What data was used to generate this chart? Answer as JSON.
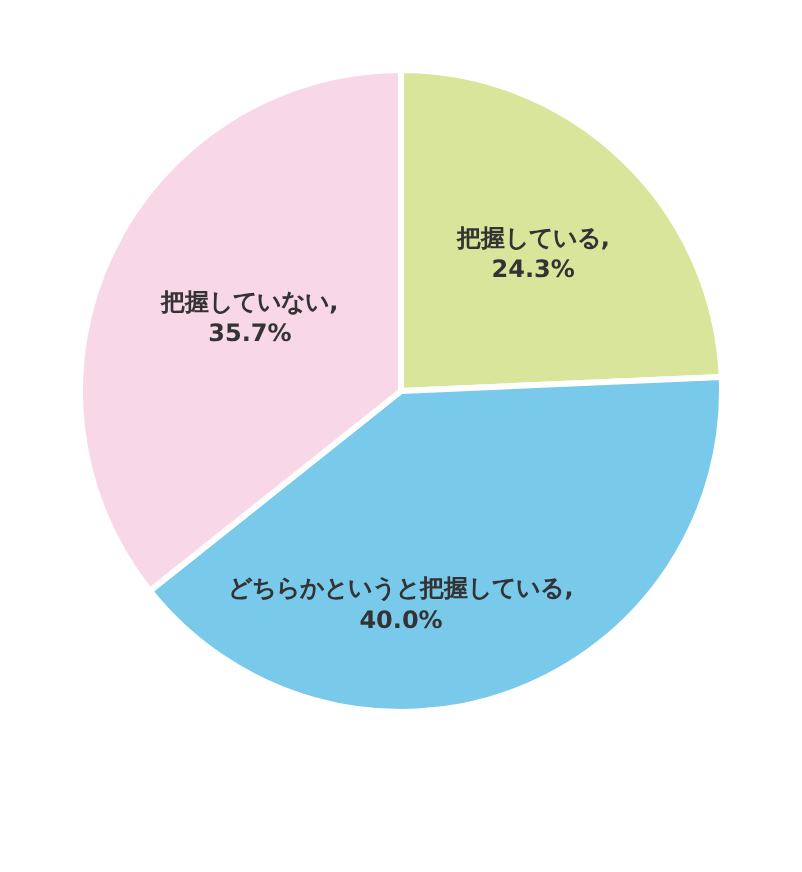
{
  "chart_data": {
    "type": "pie",
    "categories": [
      "把握している",
      "どちらかというと把握している",
      "把握していない"
    ],
    "values": [
      24.3,
      40.0,
      35.7
    ],
    "colors": [
      "#d9e59a",
      "#79c9ea",
      "#f8d7e7"
    ],
    "value_labels": [
      ", 24.3%",
      ", 40.0%",
      ", 35.7%"
    ],
    "legend": false
  }
}
